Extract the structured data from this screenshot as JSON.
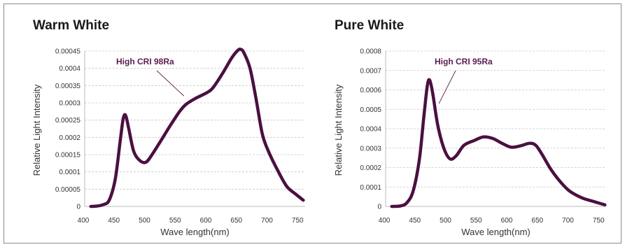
{
  "chart_data": [
    {
      "type": "line",
      "title": "Warm White",
      "xlabel": "Wave length(nm)",
      "ylabel": "Relative Light Intensity",
      "xlim": [
        400,
        760
      ],
      "ylim": [
        0,
        0.00045
      ],
      "x_ticks": [
        "400",
        "450",
        "500",
        "550",
        "600",
        "650",
        "700",
        "750"
      ],
      "y_ticks": [
        "0",
        "0.00005",
        "0.0001",
        "0.00015",
        "0.0002",
        "0.00025",
        "0.0003",
        "0.00035",
        "0.0004",
        "0.00045"
      ],
      "annotation": {
        "text": "High CRI 98Ra",
        "x": 562,
        "y": 0.00032
      },
      "series": [
        {
          "color": "#4a1040",
          "points": [
            [
              410,
              0.0
            ],
            [
              420,
              1e-06
            ],
            [
              430,
              5e-06
            ],
            [
              440,
              1.8e-05
            ],
            [
              450,
              8e-05
            ],
            [
              458,
              0.00019
            ],
            [
              463,
              0.000255
            ],
            [
              467,
              0.000263
            ],
            [
              472,
              0.000225
            ],
            [
              480,
              0.00016
            ],
            [
              490,
              0.000133
            ],
            [
              500,
              0.000128
            ],
            [
              510,
              0.00015
            ],
            [
              525,
              0.000192
            ],
            [
              540,
              0.000235
            ],
            [
              555,
              0.000275
            ],
            [
              565,
              0.000295
            ],
            [
              580,
              0.000312
            ],
            [
              600,
              0.00033
            ],
            [
              610,
              0.000345
            ],
            [
              625,
              0.000385
            ],
            [
              640,
              0.00043
            ],
            [
              650,
              0.000452
            ],
            [
              655,
              0.000455
            ],
            [
              660,
              0.000445
            ],
            [
              670,
              0.0004
            ],
            [
              680,
              0.00031
            ],
            [
              690,
              0.00021
            ],
            [
              700,
              0.00016
            ],
            [
              715,
              0.000105
            ],
            [
              730,
              5.8e-05
            ],
            [
              745,
              3.5e-05
            ],
            [
              757,
              1.8e-05
            ]
          ]
        }
      ]
    },
    {
      "type": "line",
      "title": "Pure White",
      "xlabel": "Wave length(nm)",
      "ylabel": "Relative Light Intensity",
      "xlim": [
        400,
        760
      ],
      "ylim": [
        0,
        0.0008
      ],
      "x_ticks": [
        "400",
        "450",
        "500",
        "550",
        "600",
        "650",
        "700",
        "750"
      ],
      "y_ticks": [
        "0",
        "0.0001",
        "0.0002",
        "0.0003",
        "0.0004",
        "0.0005",
        "0.0006",
        "0.0007",
        "0.0008"
      ],
      "annotation": {
        "text": "High CRI 95Ra",
        "x": 487,
        "y": 0.00053
      },
      "series": [
        {
          "color": "#4a1040",
          "points": [
            [
              410,
              0.0
            ],
            [
              425,
              3e-06
            ],
            [
              435,
              2e-05
            ],
            [
              445,
              8e-05
            ],
            [
              455,
              0.00024
            ],
            [
              462,
              0.00045
            ],
            [
              468,
              0.00062
            ],
            [
              472,
              0.00065
            ],
            [
              477,
              0.00058
            ],
            [
              485,
              0.00042
            ],
            [
              495,
              0.0003
            ],
            [
              505,
              0.000245
            ],
            [
              515,
              0.00026
            ],
            [
              528,
              0.000315
            ],
            [
              545,
              0.00034
            ],
            [
              560,
              0.000358
            ],
            [
              575,
              0.00035
            ],
            [
              590,
              0.000325
            ],
            [
              605,
              0.000305
            ],
            [
              620,
              0.000312
            ],
            [
              635,
              0.000325
            ],
            [
              645,
              0.000315
            ],
            [
              655,
              0.00027
            ],
            [
              670,
              0.00019
            ],
            [
              685,
              0.000128
            ],
            [
              700,
              8e-05
            ],
            [
              720,
              4.5e-05
            ],
            [
              740,
              2.5e-05
            ],
            [
              758,
              8e-06
            ]
          ]
        }
      ]
    }
  ]
}
